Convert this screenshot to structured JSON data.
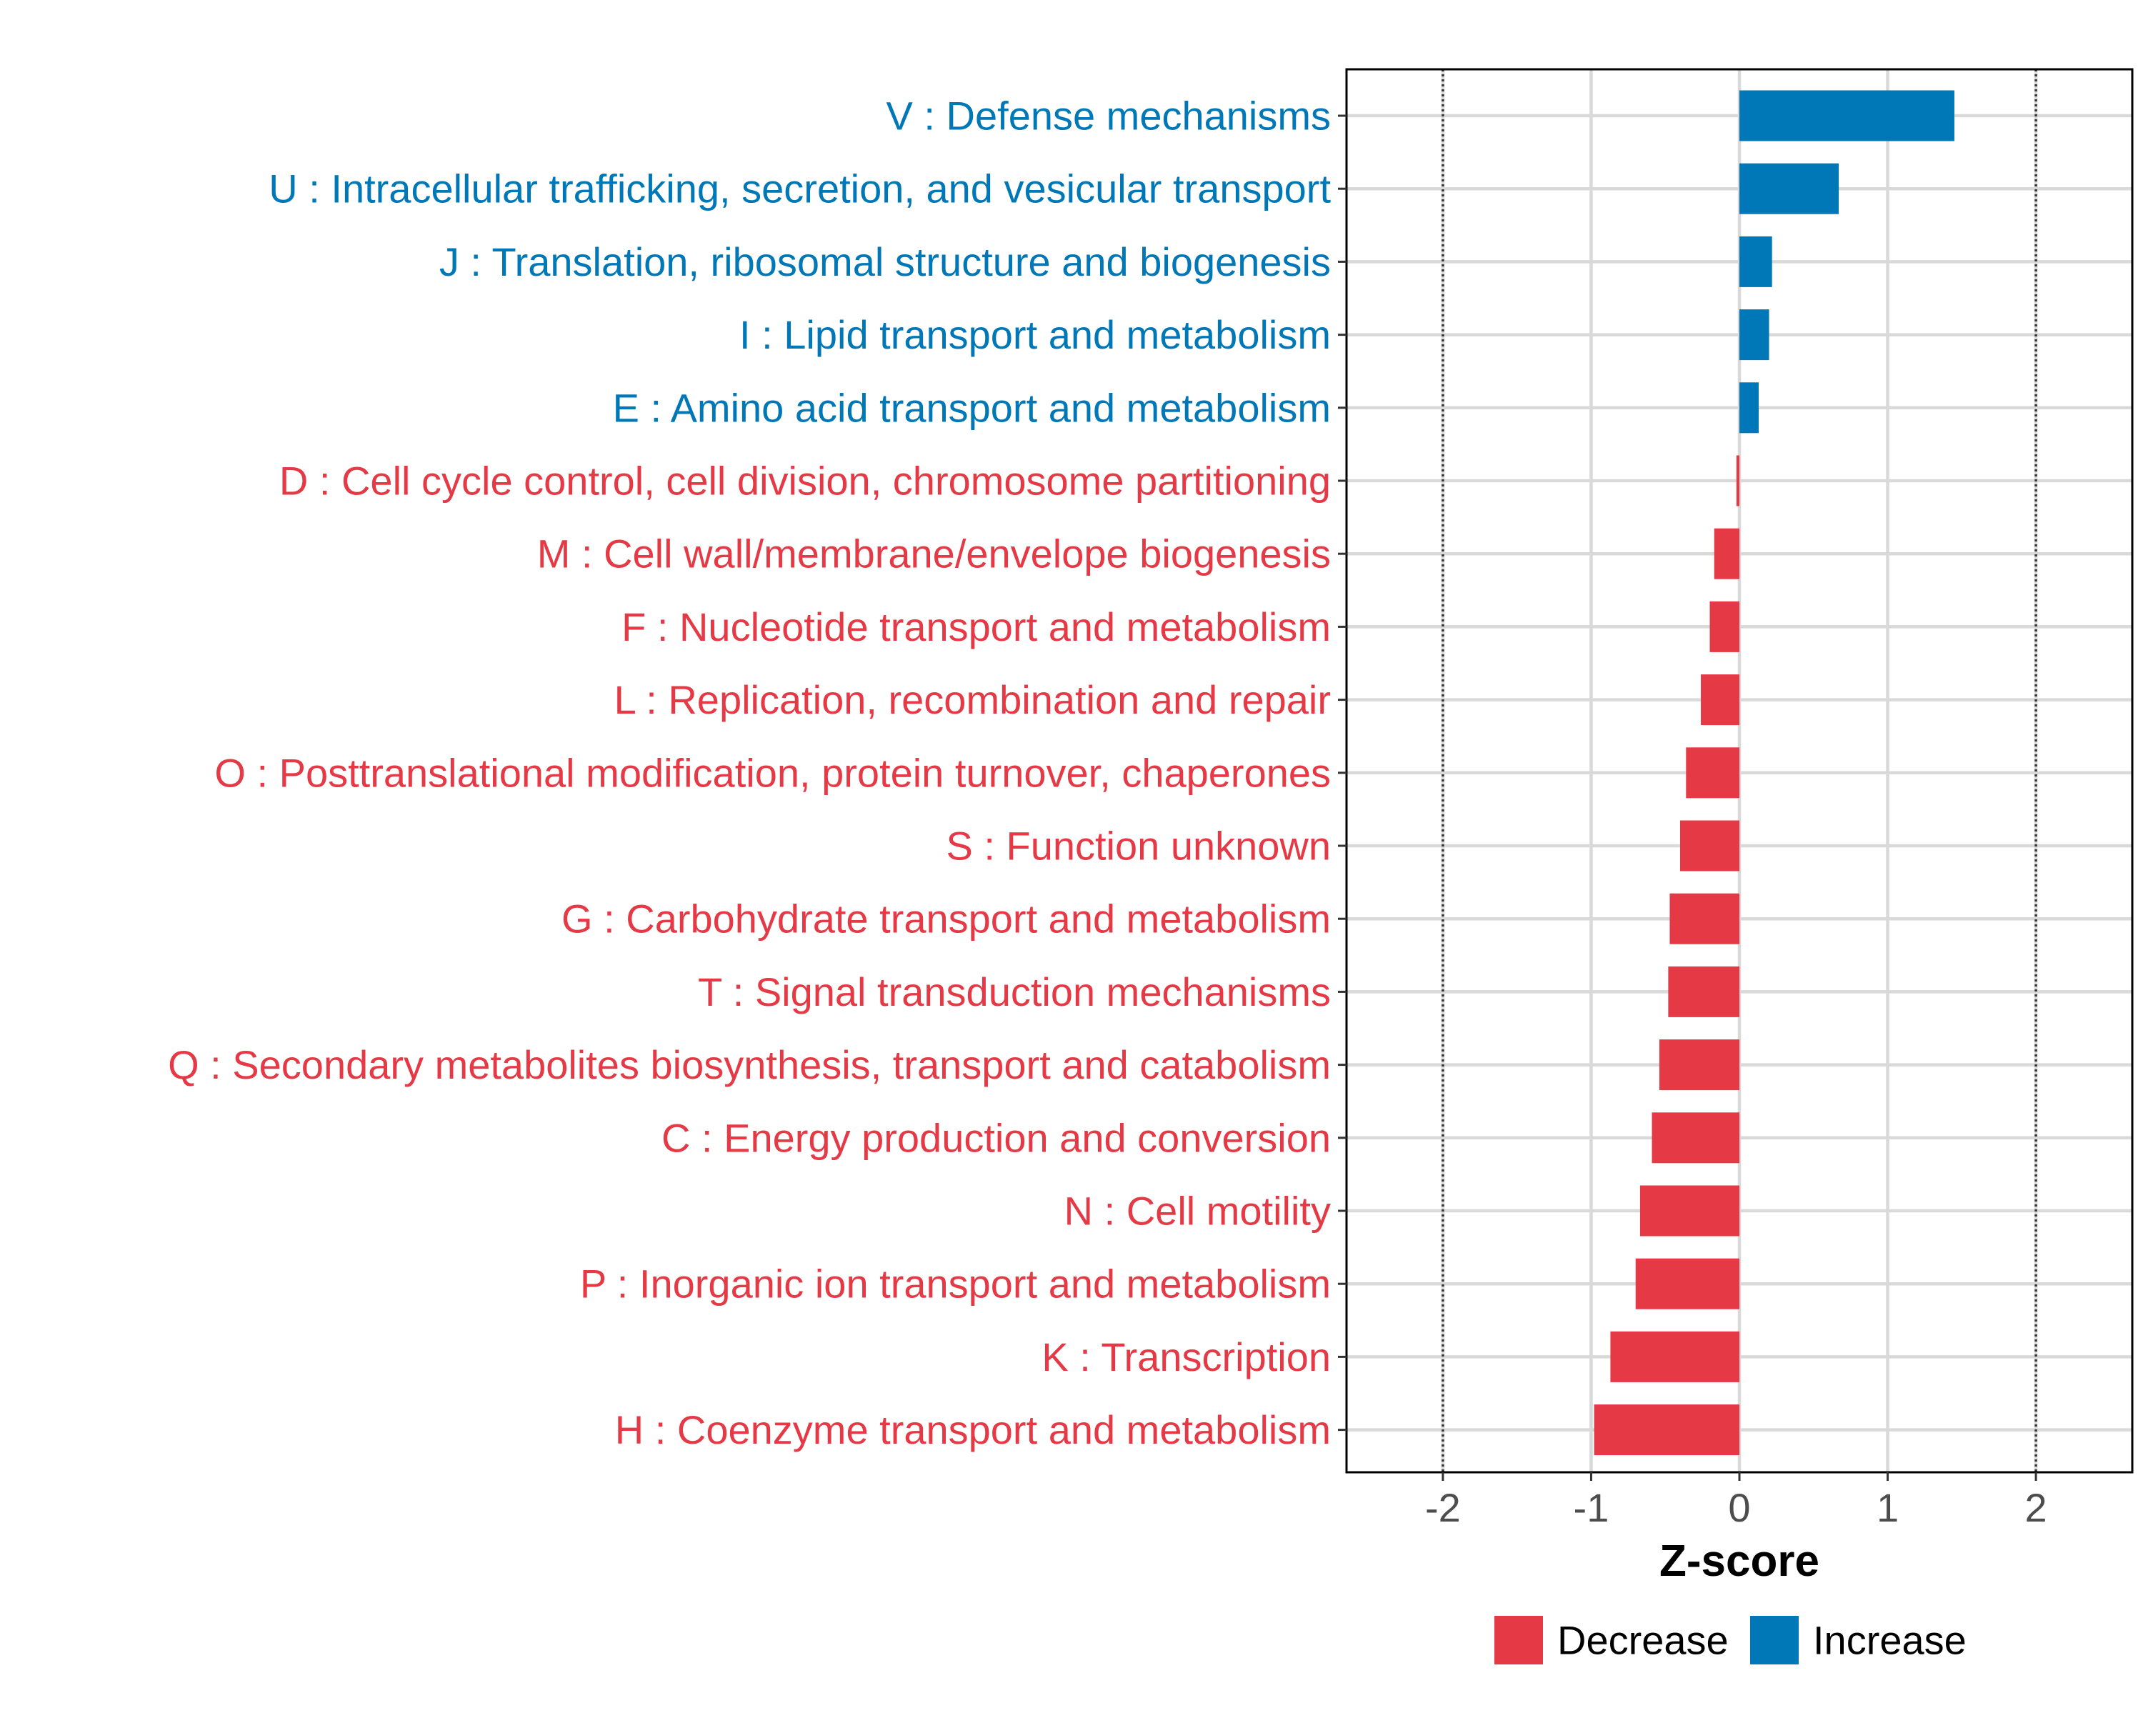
{
  "chart_data": {
    "type": "bar",
    "orientation": "horizontal",
    "xlabel": "Z-score",
    "ylabel": "",
    "xlim": [
      -2.65,
      2.65
    ],
    "xticks": [
      -2,
      -1,
      0,
      1,
      2
    ],
    "xtick_labels": [
      "-2",
      "-1",
      "0",
      "1",
      "2"
    ],
    "reference_lines": [
      -2,
      2
    ],
    "grid": true,
    "legend_position": "bottom",
    "legend": [
      {
        "name": "Decrease",
        "color": "#E63946"
      },
      {
        "name": "Increase",
        "color": "#0077B6"
      }
    ],
    "categories": [
      "V : Defense mechanisms",
      "U : Intracellular trafficking, secretion, and vesicular transport",
      "J : Translation, ribosomal structure and biogenesis",
      "I : Lipid transport and metabolism",
      "E : Amino acid transport and metabolism",
      "D : Cell cycle control, cell division, chromosome partitioning",
      "M : Cell wall/membrane/envelope biogenesis",
      "F : Nucleotide transport and metabolism",
      "L : Replication, recombination and repair",
      "O : Posttranslational modification, protein turnover, chaperones",
      "S : Function unknown",
      "G : Carbohydrate transport and metabolism",
      "T : Signal transduction mechanisms",
      "Q : Secondary metabolites biosynthesis, transport and catabolism",
      "C : Energy production and conversion",
      "N : Cell motility",
      "P : Inorganic ion transport and metabolism",
      "K : Transcription",
      "H : Coenzyme transport and metabolism"
    ],
    "values": [
      1.45,
      0.67,
      0.22,
      0.2,
      0.13,
      -0.02,
      -0.17,
      -0.2,
      -0.26,
      -0.36,
      -0.4,
      -0.47,
      -0.48,
      -0.54,
      -0.59,
      -0.67,
      -0.7,
      -0.87,
      -0.98
    ],
    "groups": [
      "Increase",
      "Increase",
      "Increase",
      "Increase",
      "Increase",
      "Decrease",
      "Decrease",
      "Decrease",
      "Decrease",
      "Decrease",
      "Decrease",
      "Decrease",
      "Decrease",
      "Decrease",
      "Decrease",
      "Decrease",
      "Decrease",
      "Decrease",
      "Decrease"
    ]
  }
}
